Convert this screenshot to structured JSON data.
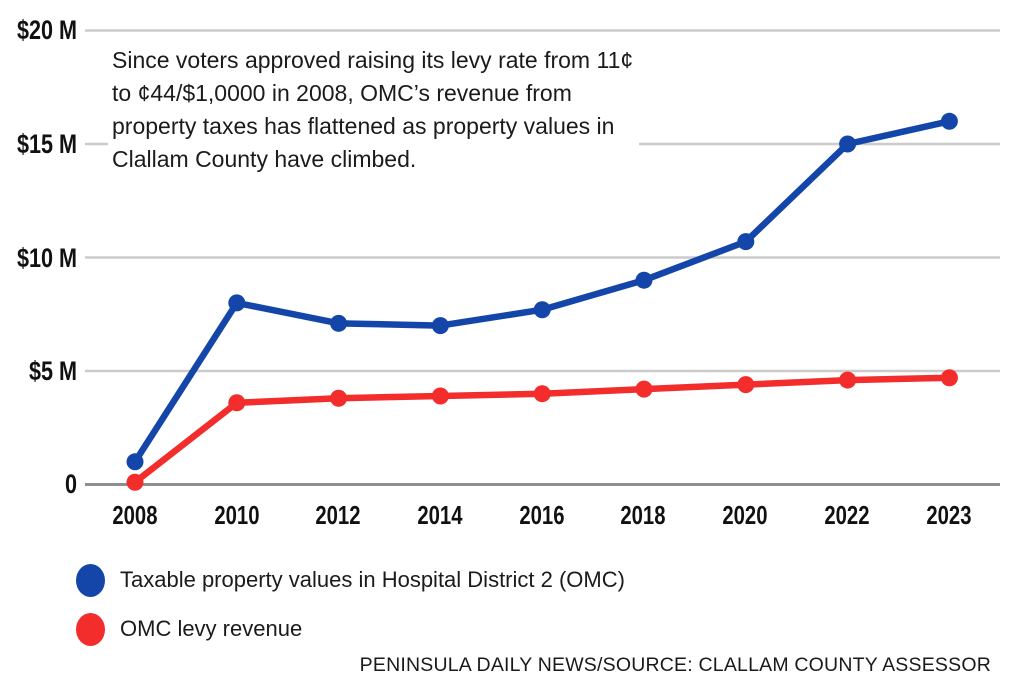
{
  "annotation": {
    "text": "Since voters approved raising its levy rate from 11¢\nto ¢44/$1,0000 in 2008, OMC’s revenue from\nproperty taxes has flattened as property values in\nClallam County have climbed."
  },
  "source_credit": "PENINSULA DAILY NEWS/SOURCE: CLALLAM COUNTY ASSESSOR",
  "colors": {
    "property_values_line": "#1346A8",
    "levy_revenue_line": "#F32C2C",
    "gridline": "#CBCBCB",
    "axis_line": "#8E8E8E",
    "text": "#1B1B1B"
  },
  "chart_data": {
    "type": "line",
    "title": "",
    "xlabel": "",
    "ylabel": "",
    "categories": [
      "2008",
      "2010",
      "2012",
      "2014",
      "2016",
      "2018",
      "2020",
      "2022",
      "2023"
    ],
    "y_ticks": [
      "$20 M",
      "$15 M",
      "$10 M",
      "$5 M",
      "0"
    ],
    "y_tick_values": [
      20,
      15,
      10,
      5,
      0
    ],
    "ylim": [
      0,
      20
    ],
    "units": "millions of dollars",
    "grid": "horizontal gridlines on, white background",
    "legend_position": "bottom-left",
    "series": [
      {
        "name": "Taxable property values in Hospital District 2 (OMC)",
        "color": "#1346A8",
        "values": [
          1.0,
          8.0,
          7.1,
          7.0,
          7.7,
          9.0,
          10.7,
          15.0,
          16.0
        ]
      },
      {
        "name": "OMC levy revenue",
        "color": "#F32C2C",
        "values": [
          0.1,
          3.6,
          3.8,
          3.9,
          4.0,
          4.2,
          4.4,
          4.6,
          4.7
        ]
      }
    ]
  }
}
